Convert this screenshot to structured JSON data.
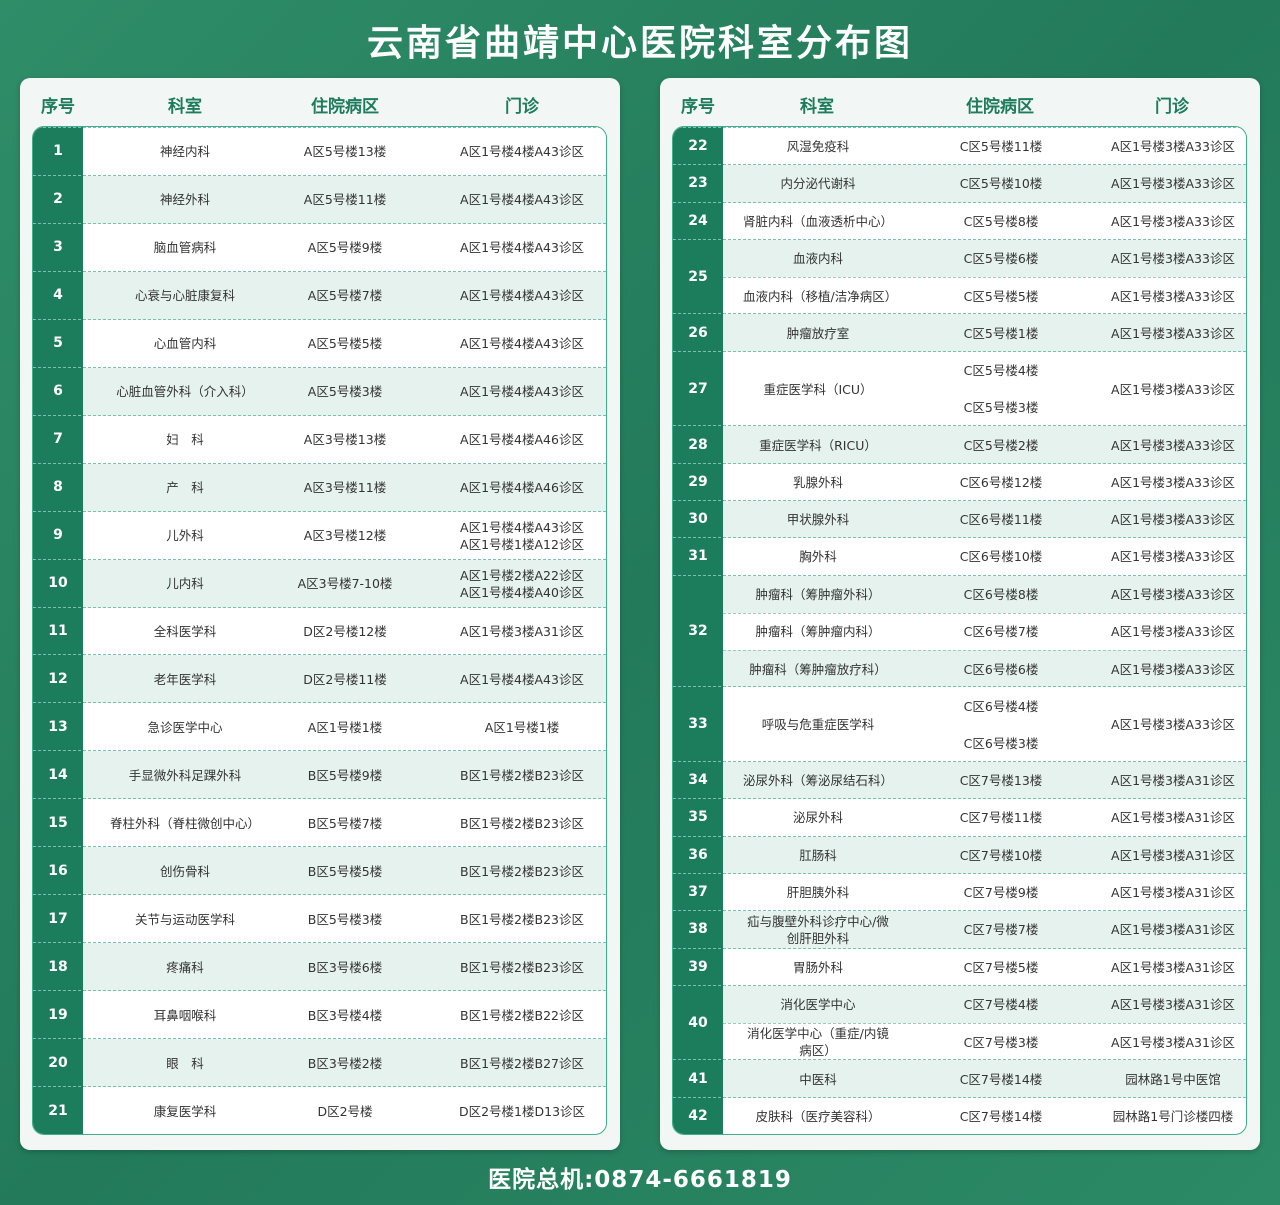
{
  "title": "云南省曲靖中心医院科室分布图",
  "footer": "医院总机:0874-6661819",
  "colors": {
    "background": "#2a8562",
    "number_column": "#1b7d5c",
    "stripe": "#e6f2ee",
    "header_text": "#1d7c5b"
  },
  "headers": {
    "num": "序号",
    "dept": "科室",
    "ward": "住院病区",
    "clinic": "门诊"
  },
  "left_table": [
    {
      "num": "1",
      "items": [
        {
          "dept": "神经内科",
          "wards": [
            "A区5号楼13楼"
          ],
          "clinic": [
            "A区1号楼4楼A43诊区"
          ]
        }
      ]
    },
    {
      "num": "2",
      "items": [
        {
          "dept": "神经外科",
          "wards": [
            "A区5号楼11楼"
          ],
          "clinic": [
            "A区1号楼4楼A43诊区"
          ]
        }
      ]
    },
    {
      "num": "3",
      "items": [
        {
          "dept": "脑血管病科",
          "wards": [
            "A区5号楼9楼"
          ],
          "clinic": [
            "A区1号楼4楼A43诊区"
          ]
        }
      ]
    },
    {
      "num": "4",
      "items": [
        {
          "dept": "心衰与心脏康复科",
          "wards": [
            "A区5号楼7楼"
          ],
          "clinic": [
            "A区1号楼4楼A43诊区"
          ]
        }
      ]
    },
    {
      "num": "5",
      "items": [
        {
          "dept": "心血管内科",
          "wards": [
            "A区5号楼5楼"
          ],
          "clinic": [
            "A区1号楼4楼A43诊区"
          ]
        }
      ]
    },
    {
      "num": "6",
      "items": [
        {
          "dept": "心脏血管外科（介入科）",
          "wards": [
            "A区5号楼3楼"
          ],
          "clinic": [
            "A区1号楼4楼A43诊区"
          ]
        }
      ]
    },
    {
      "num": "7",
      "items": [
        {
          "dept": "妇　科",
          "wards": [
            "A区3号楼13楼"
          ],
          "clinic": [
            "A区1号楼4楼A46诊区"
          ]
        }
      ]
    },
    {
      "num": "8",
      "items": [
        {
          "dept": "产　科",
          "wards": [
            "A区3号楼11楼"
          ],
          "clinic": [
            "A区1号楼4楼A46诊区"
          ]
        }
      ]
    },
    {
      "num": "9",
      "items": [
        {
          "dept": "儿外科",
          "wards": [
            "A区3号楼12楼"
          ],
          "clinic": [
            "A区1号楼4楼A43诊区",
            "A区1号楼1楼A12诊区"
          ]
        }
      ]
    },
    {
      "num": "10",
      "items": [
        {
          "dept": "儿内科",
          "wards": [
            "A区3号楼7-10楼"
          ],
          "clinic": [
            "A区1号楼2楼A22诊区",
            "A区1号楼4楼A40诊区"
          ]
        }
      ]
    },
    {
      "num": "11",
      "items": [
        {
          "dept": "全科医学科",
          "wards": [
            "D区2号楼12楼"
          ],
          "clinic": [
            "A区1号楼3楼A31诊区"
          ]
        }
      ]
    },
    {
      "num": "12",
      "items": [
        {
          "dept": "老年医学科",
          "wards": [
            "D区2号楼11楼"
          ],
          "clinic": [
            "A区1号楼4楼A43诊区"
          ]
        }
      ]
    },
    {
      "num": "13",
      "items": [
        {
          "dept": "急诊医学中心",
          "wards": [
            "A区1号楼1楼"
          ],
          "clinic": [
            "A区1号楼1楼"
          ]
        }
      ]
    },
    {
      "num": "14",
      "items": [
        {
          "dept": "手显微外科足踝外科",
          "wards": [
            "B区5号楼9楼"
          ],
          "clinic": [
            "B区1号楼2楼B23诊区"
          ]
        }
      ]
    },
    {
      "num": "15",
      "items": [
        {
          "dept": "脊柱外科（脊柱微创中心）",
          "wards": [
            "B区5号楼7楼"
          ],
          "clinic": [
            "B区1号楼2楼B23诊区"
          ]
        }
      ]
    },
    {
      "num": "16",
      "items": [
        {
          "dept": "创伤骨科",
          "wards": [
            "B区5号楼5楼"
          ],
          "clinic": [
            "B区1号楼2楼B23诊区"
          ]
        }
      ]
    },
    {
      "num": "17",
      "items": [
        {
          "dept": "关节与运动医学科",
          "wards": [
            "B区5号楼3楼"
          ],
          "clinic": [
            "B区1号楼2楼B23诊区"
          ]
        }
      ]
    },
    {
      "num": "18",
      "items": [
        {
          "dept": "疼痛科",
          "wards": [
            "B区3号楼6楼"
          ],
          "clinic": [
            "B区1号楼2楼B23诊区"
          ]
        }
      ]
    },
    {
      "num": "19",
      "items": [
        {
          "dept": "耳鼻咽喉科",
          "wards": [
            "B区3号楼4楼"
          ],
          "clinic": [
            "B区1号楼2楼B22诊区"
          ]
        }
      ]
    },
    {
      "num": "20",
      "items": [
        {
          "dept": "眼　科",
          "wards": [
            "B区3号楼2楼"
          ],
          "clinic": [
            "B区1号楼2楼B27诊区"
          ]
        }
      ]
    },
    {
      "num": "21",
      "items": [
        {
          "dept": "康复医学科",
          "wards": [
            "D区2号楼"
          ],
          "clinic": [
            "D区2号楼1楼D13诊区"
          ]
        }
      ]
    }
  ],
  "right_table": [
    {
      "num": "22",
      "items": [
        {
          "dept": "风湿免疫科",
          "wards": [
            "C区5号楼11楼"
          ],
          "clinic": [
            "A区1号楼3楼A33诊区"
          ]
        }
      ]
    },
    {
      "num": "23",
      "items": [
        {
          "dept": "内分泌代谢科",
          "wards": [
            "C区5号楼10楼"
          ],
          "clinic": [
            "A区1号楼3楼A33诊区"
          ]
        }
      ]
    },
    {
      "num": "24",
      "items": [
        {
          "dept": "肾脏内科（血液透析中心）",
          "wards": [
            "C区5号楼8楼"
          ],
          "clinic": [
            "A区1号楼3楼A33诊区"
          ]
        }
      ]
    },
    {
      "num": "25",
      "items": [
        {
          "dept": "血液内科",
          "wards": [
            "C区5号楼6楼"
          ],
          "clinic": [
            "A区1号楼3楼A33诊区"
          ]
        },
        {
          "dept": "血液内科（移植/洁净病区）",
          "wards": [
            "C区5号楼5楼"
          ],
          "clinic": [
            "A区1号楼3楼A33诊区"
          ]
        }
      ]
    },
    {
      "num": "26",
      "items": [
        {
          "dept": "肿瘤放疗室",
          "wards": [
            "C区5号楼1楼"
          ],
          "clinic": [
            "A区1号楼3楼A33诊区"
          ]
        }
      ]
    },
    {
      "num": "27",
      "items": [
        {
          "dept": "重症医学科（ICU）",
          "wards": [
            "C区5号楼4楼",
            "C区5号楼3楼"
          ],
          "clinic": [
            "A区1号楼3楼A33诊区"
          ]
        }
      ]
    },
    {
      "num": "28",
      "items": [
        {
          "dept": "重症医学科（RICU）",
          "wards": [
            "C区5号楼2楼"
          ],
          "clinic": [
            "A区1号楼3楼A33诊区"
          ]
        }
      ]
    },
    {
      "num": "29",
      "items": [
        {
          "dept": "乳腺外科",
          "wards": [
            "C区6号楼12楼"
          ],
          "clinic": [
            "A区1号楼3楼A33诊区"
          ]
        }
      ]
    },
    {
      "num": "30",
      "items": [
        {
          "dept": "甲状腺外科",
          "wards": [
            "C区6号楼11楼"
          ],
          "clinic": [
            "A区1号楼3楼A33诊区"
          ]
        }
      ]
    },
    {
      "num": "31",
      "items": [
        {
          "dept": "胸外科",
          "wards": [
            "C区6号楼10楼"
          ],
          "clinic": [
            "A区1号楼3楼A33诊区"
          ]
        }
      ]
    },
    {
      "num": "32",
      "items": [
        {
          "dept": "肿瘤科（筹肿瘤外科）",
          "wards": [
            "C区6号楼8楼"
          ],
          "clinic": [
            "A区1号楼3楼A33诊区"
          ]
        },
        {
          "dept": "肿瘤科（筹肿瘤内科）",
          "wards": [
            "C区6号楼7楼"
          ],
          "clinic": [
            "A区1号楼3楼A33诊区"
          ]
        },
        {
          "dept": "肿瘤科（筹肿瘤放疗科）",
          "wards": [
            "C区6号楼6楼"
          ],
          "clinic": [
            "A区1号楼3楼A33诊区"
          ]
        }
      ]
    },
    {
      "num": "33",
      "items": [
        {
          "dept": "呼吸与危重症医学科",
          "wards": [
            "C区6号楼4楼",
            "C区6号楼3楼"
          ],
          "clinic": [
            "A区1号楼3楼A33诊区"
          ]
        }
      ]
    },
    {
      "num": "34",
      "items": [
        {
          "dept": "泌尿外科（筹泌尿结石科）",
          "wards": [
            "C区7号楼13楼"
          ],
          "clinic": [
            "A区1号楼3楼A31诊区"
          ]
        }
      ]
    },
    {
      "num": "35",
      "items": [
        {
          "dept": "泌尿外科",
          "wards": [
            "C区7号楼11楼"
          ],
          "clinic": [
            "A区1号楼3楼A31诊区"
          ]
        }
      ]
    },
    {
      "num": "36",
      "items": [
        {
          "dept": "肛肠科",
          "wards": [
            "C区7号楼10楼"
          ],
          "clinic": [
            "A区1号楼3楼A31诊区"
          ]
        }
      ]
    },
    {
      "num": "37",
      "items": [
        {
          "dept": "肝胆胰外科",
          "wards": [
            "C区7号楼9楼"
          ],
          "clinic": [
            "A区1号楼3楼A31诊区"
          ]
        }
      ]
    },
    {
      "num": "38",
      "items": [
        {
          "dept": "疝与腹壁外科诊疗中心/微创肝胆外科",
          "wards": [
            "C区7号楼7楼"
          ],
          "clinic": [
            "A区1号楼3楼A31诊区"
          ]
        }
      ]
    },
    {
      "num": "39",
      "items": [
        {
          "dept": "胃肠外科",
          "wards": [
            "C区7号楼5楼"
          ],
          "clinic": [
            "A区1号楼3楼A31诊区"
          ]
        }
      ]
    },
    {
      "num": "40",
      "items": [
        {
          "dept": "消化医学中心",
          "wards": [
            "C区7号楼4楼"
          ],
          "clinic": [
            "A区1号楼3楼A31诊区"
          ]
        },
        {
          "dept": "消化医学中心（重症/内镜病区）",
          "wards": [
            "C区7号楼3楼"
          ],
          "clinic": [
            "A区1号楼3楼A31诊区"
          ]
        }
      ]
    },
    {
      "num": "41",
      "items": [
        {
          "dept": "中医科",
          "wards": [
            "C区7号楼14楼"
          ],
          "clinic": [
            "园林路1号中医馆"
          ]
        }
      ]
    },
    {
      "num": "42",
      "items": [
        {
          "dept": "皮肤科（医疗美容科）",
          "wards": [
            "C区7号楼14楼"
          ],
          "clinic": [
            "园林路1号门诊楼四楼"
          ]
        }
      ]
    }
  ]
}
